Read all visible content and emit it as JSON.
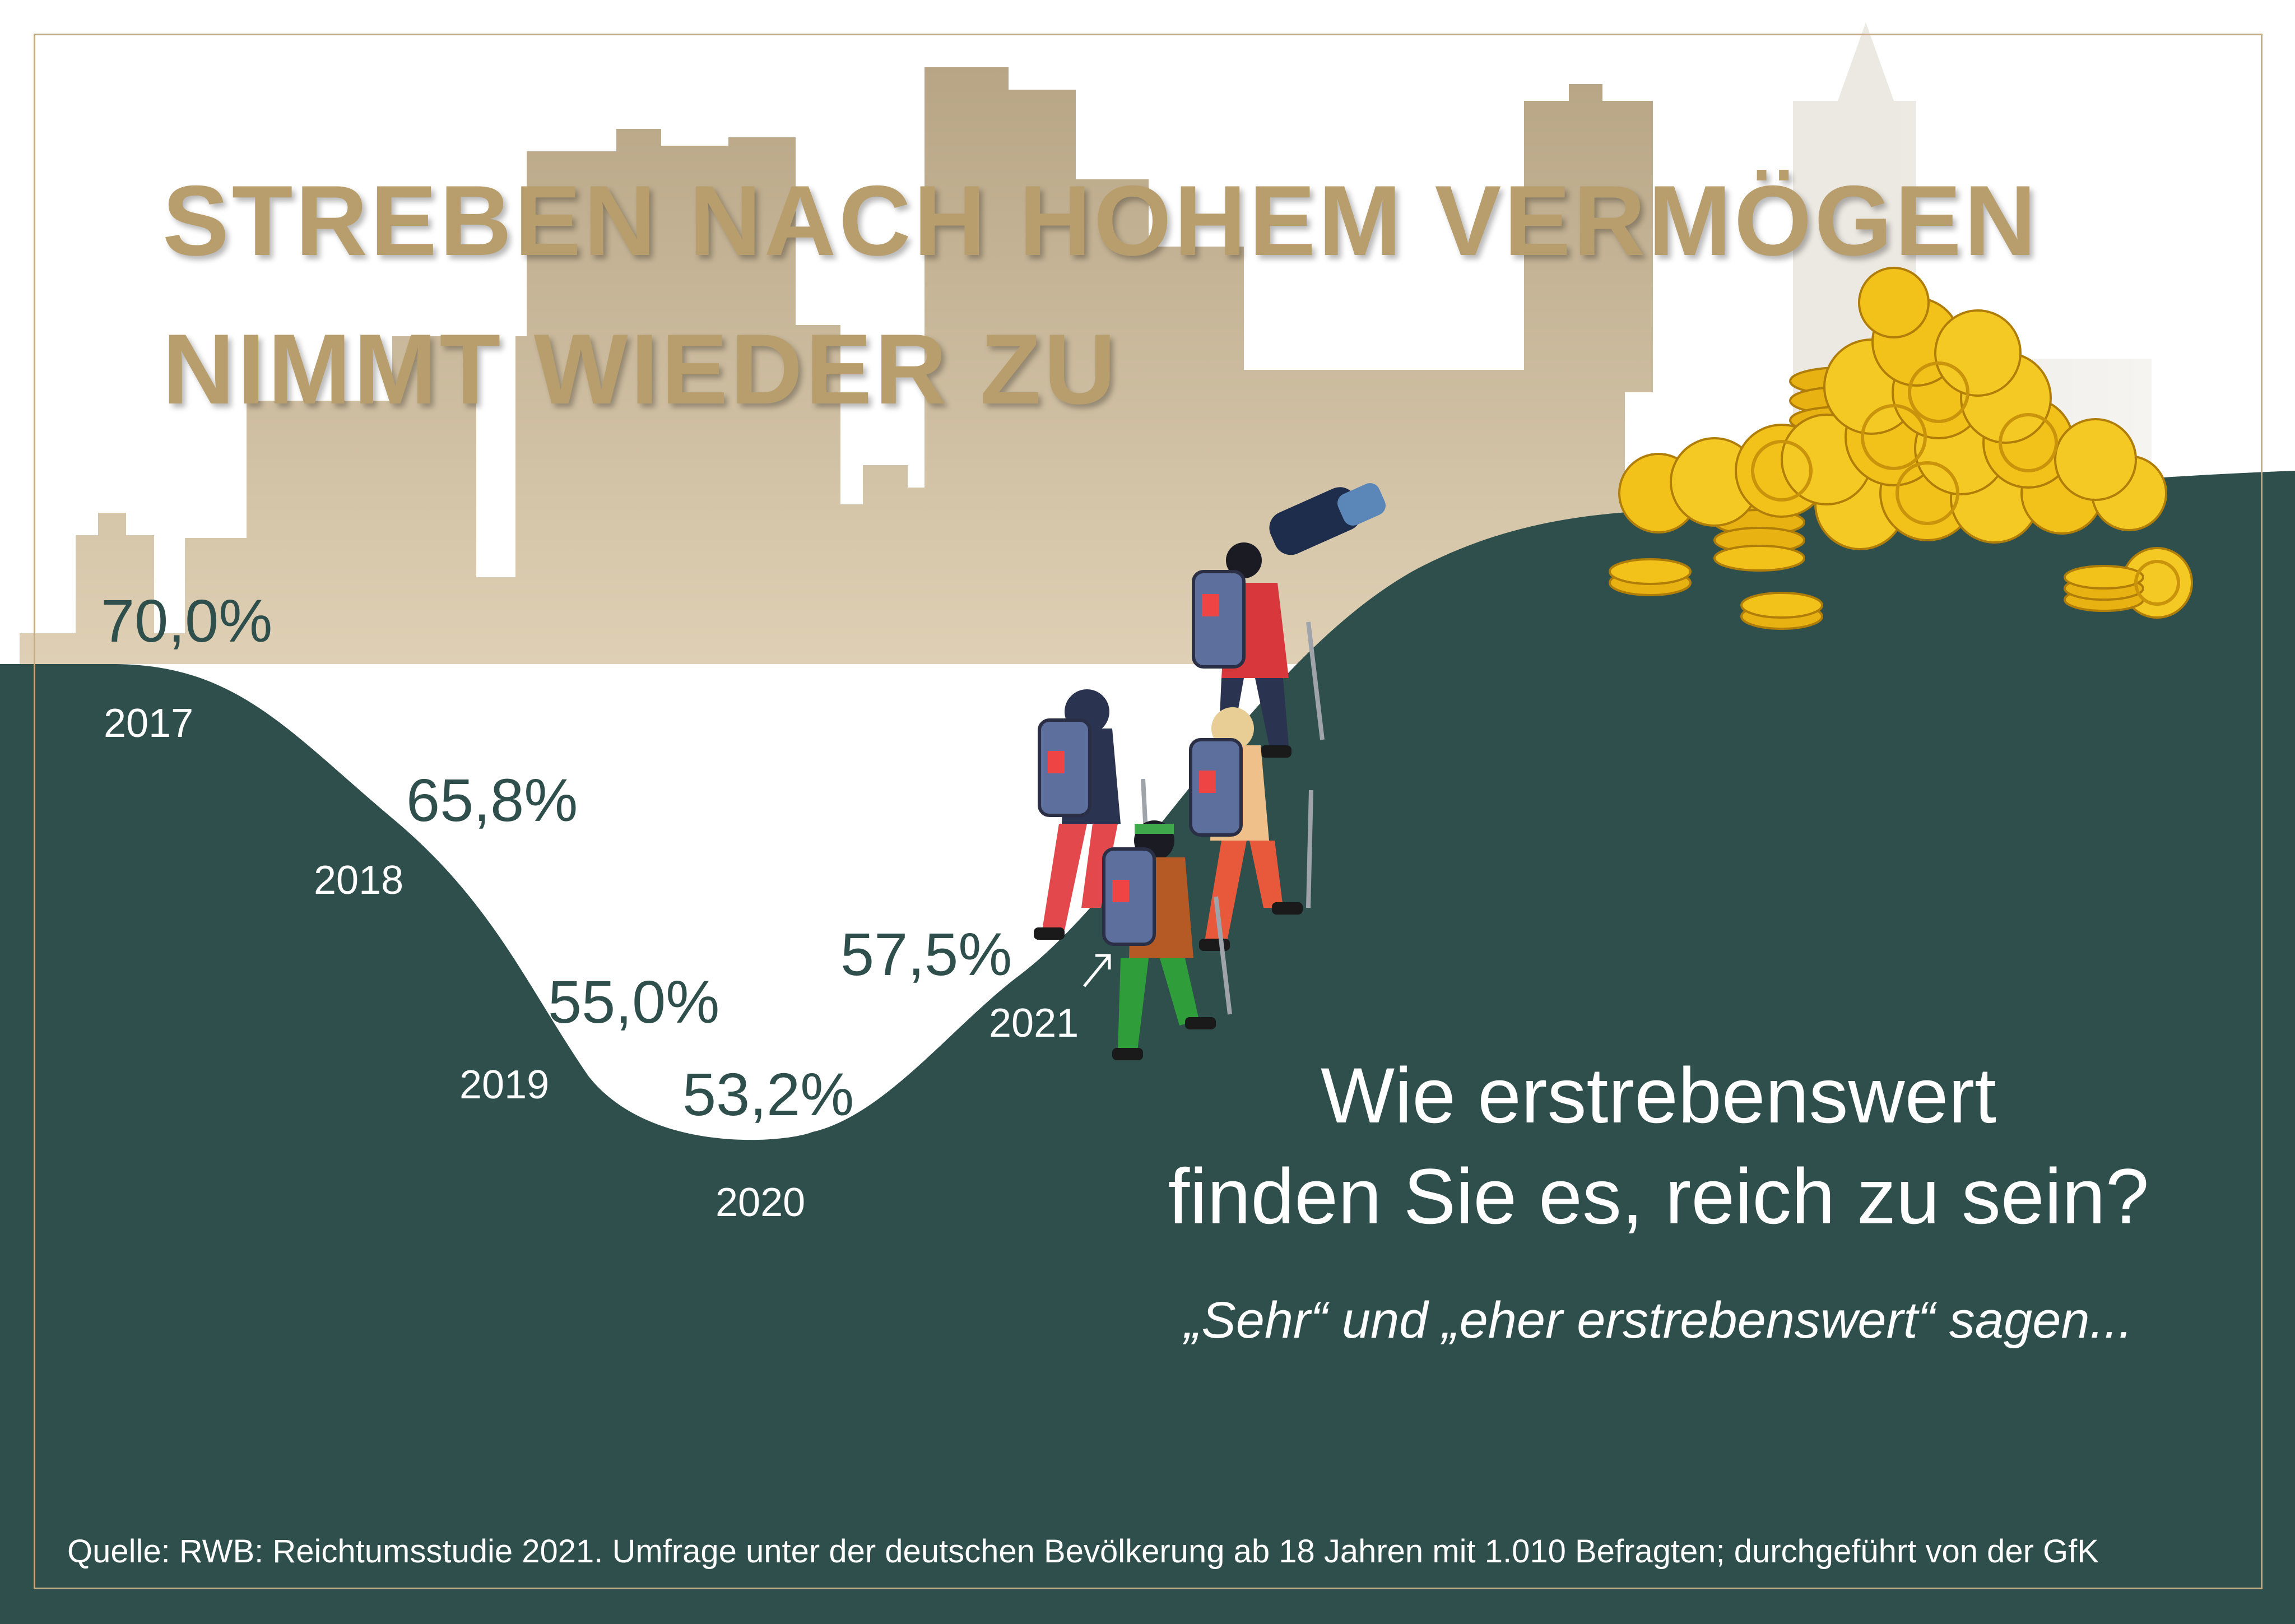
{
  "title": {
    "line1": "STREBEN NACH HOHEM VERMÖGEN",
    "line2": "NIMMT WIEDER ZU"
  },
  "question": {
    "line1": "Wie erstrebenswert",
    "line2": "finden Sie es, reich zu sein?"
  },
  "subtext": "„Sehr“ und „eher erstrebenswert“ sagen...",
  "source": "Quelle: RWB: Reichtumsstudie 2021. Umfrage unter der deutschen Bevölkerung ab 18 Jahren mit 1.010 Befragten; durchgeführt von der GfK",
  "colors": {
    "dark_green": "#2f4f4c",
    "gold": "#b9a47f",
    "gold_text": "#b89e6c",
    "sand": "#d6c7ad",
    "skyline": "#ebe6de",
    "coin": "#f2c21a",
    "coin_dark": "#c9930b",
    "white": "#ffffff"
  },
  "icons": [
    "city-skyline-icon",
    "hikers-icon",
    "coin-pile-icon"
  ],
  "chart_data": {
    "type": "area",
    "categories": [
      "2017",
      "2018",
      "2019",
      "2020",
      "2021"
    ],
    "values": [
      70.0,
      65.8,
      55.0,
      53.2,
      57.5
    ],
    "value_labels": [
      "70,0%",
      "65,8%",
      "55,0%",
      "53,2%",
      "57,5%"
    ],
    "title": "",
    "xlabel": "",
    "ylabel": "",
    "grid": false
  }
}
